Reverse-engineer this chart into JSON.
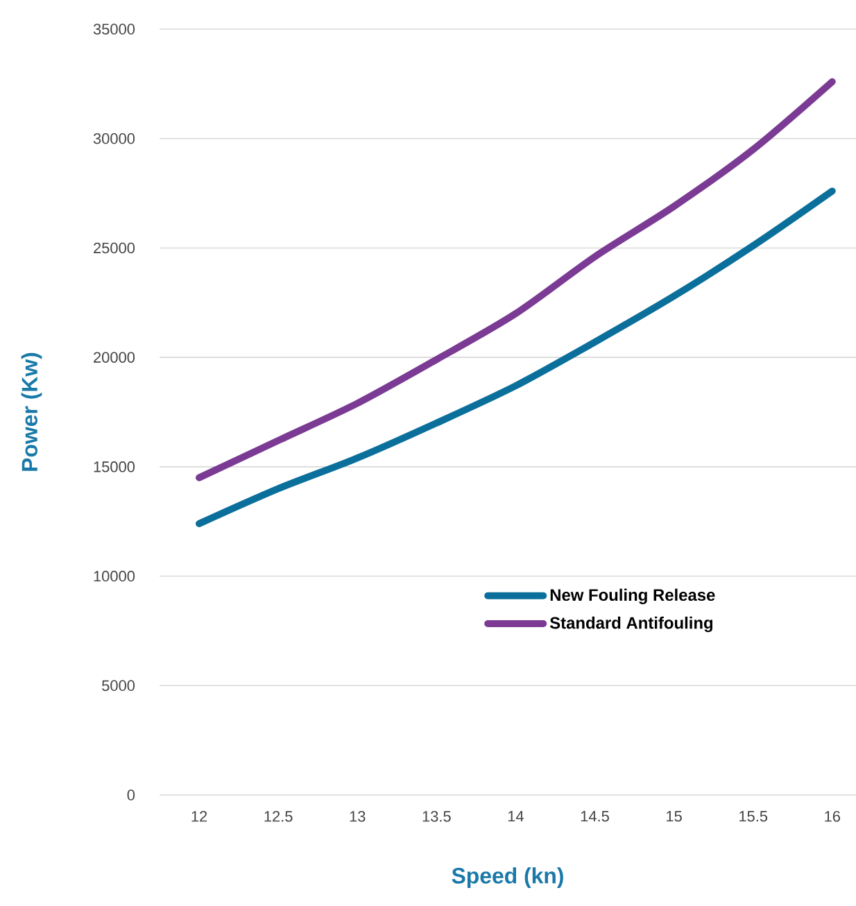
{
  "chart_data": {
    "type": "line",
    "xlabel": "Speed (kn)",
    "ylabel": "Power (Kw)",
    "x": [
      12,
      12.5,
      13,
      13.5,
      14,
      14.5,
      15,
      15.5,
      16
    ],
    "series": [
      {
        "name": "New Fouling Release",
        "color": "#0b6f9c",
        "values": [
          12400,
          14000,
          15400,
          17000,
          18700,
          20700,
          22800,
          25100,
          27600
        ]
      },
      {
        "name": "Standard Antifouling",
        "color": "#7b3a94",
        "values": [
          14500,
          16200,
          17900,
          19900,
          22000,
          24600,
          26900,
          29500,
          32600
        ]
      }
    ],
    "xlim": [
      11.75,
      16.15
    ],
    "ylim": [
      0,
      35000
    ],
    "xticks": [
      12,
      12.5,
      13,
      13.5,
      14,
      14.5,
      15,
      15.5,
      16
    ],
    "yticks": [
      0,
      5000,
      10000,
      15000,
      20000,
      25000,
      30000,
      35000
    ],
    "grid": "y",
    "legend": "bottom right",
    "marker": "none",
    "line_style": "solid"
  }
}
